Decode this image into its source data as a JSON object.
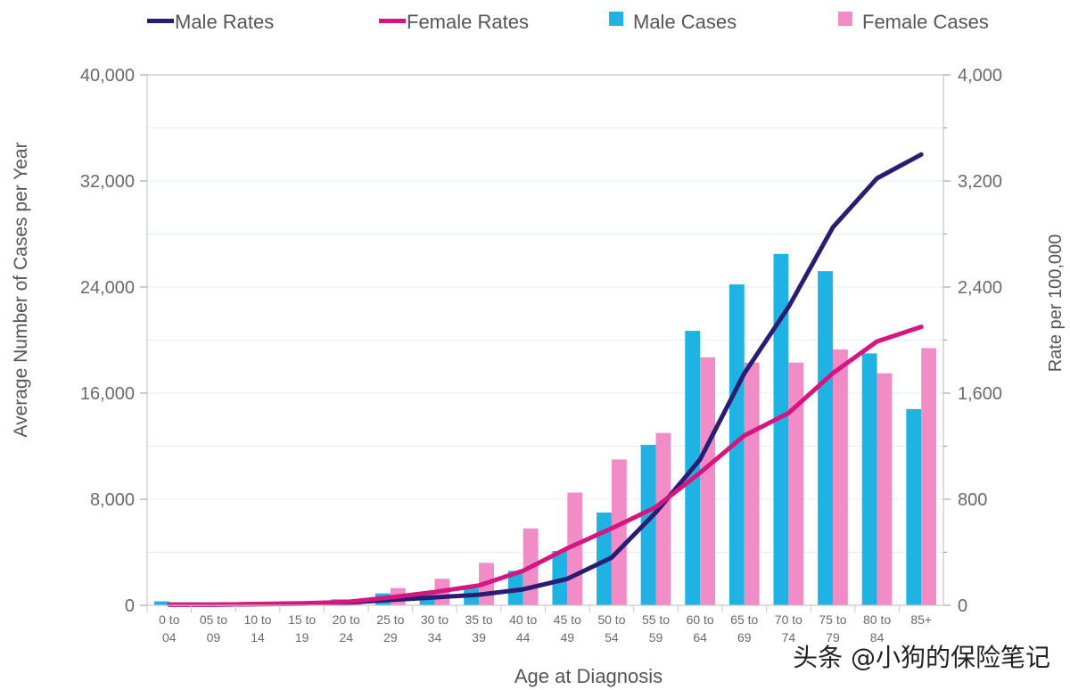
{
  "chart_data": {
    "type": "bar",
    "title": "",
    "xlabel": "Age at Diagnosis",
    "ylabel": "Average Number of Cases per Year",
    "y2label": "Rate per 100,000",
    "ylim": [
      0,
      40000
    ],
    "y2lim": [
      0,
      4000
    ],
    "yticks": [
      "0",
      "8,000",
      "16,000",
      "24,000",
      "32,000",
      "40,000"
    ],
    "y2ticks": [
      "0",
      "800",
      "1,600",
      "2,400",
      "3,200",
      "4,000"
    ],
    "ytick_values": [
      0,
      8000,
      16000,
      24000,
      32000,
      40000
    ],
    "grid": true,
    "legend_position": "top",
    "categories_line1": [
      "0 to",
      "05 to",
      "10 to",
      "15 to",
      "20 to",
      "25 to",
      "30 to",
      "35 to",
      "40 to",
      "45 to",
      "50 to",
      "55 to",
      "60 to",
      "65 to",
      "70 to",
      "75 to",
      "80 to",
      "85+"
    ],
    "categories_line2": [
      "04",
      "09",
      "14",
      "19",
      "24",
      "29",
      "34",
      "39",
      "44",
      "49",
      "54",
      "59",
      "64",
      "69",
      "74",
      "79",
      "84",
      ""
    ],
    "series": [
      {
        "name": "Male Rates",
        "kind": "line",
        "axis": "right",
        "color": "#2a1c72",
        "values": [
          5,
          5,
          8,
          12,
          20,
          40,
          60,
          80,
          120,
          200,
          360,
          700,
          1100,
          1750,
          2250,
          2850,
          3220,
          3400
        ]
      },
      {
        "name": "Female Rates",
        "kind": "line",
        "axis": "right",
        "color": "#d6157f",
        "values": [
          5,
          5,
          10,
          15,
          25,
          60,
          100,
          150,
          260,
          430,
          580,
          740,
          1000,
          1280,
          1450,
          1750,
          1990,
          2100
        ]
      },
      {
        "name": "Male Cases",
        "kind": "bar",
        "axis": "left",
        "color": "#1fb3e3",
        "values": [
          300,
          150,
          150,
          250,
          450,
          900,
          1000,
          1300,
          2600,
          4100,
          7000,
          12100,
          20700,
          24200,
          26500,
          25200,
          19000,
          14800
        ]
      },
      {
        "name": "Female Cases",
        "kind": "bar",
        "axis": "left",
        "color": "#f28cc6",
        "values": [
          100,
          100,
          150,
          250,
          450,
          1300,
          2000,
          3200,
          5800,
          8500,
          11000,
          13000,
          18700,
          18300,
          18300,
          19300,
          17500,
          19400
        ]
      }
    ]
  },
  "watermark": "头条 @小狗的保险笔记"
}
